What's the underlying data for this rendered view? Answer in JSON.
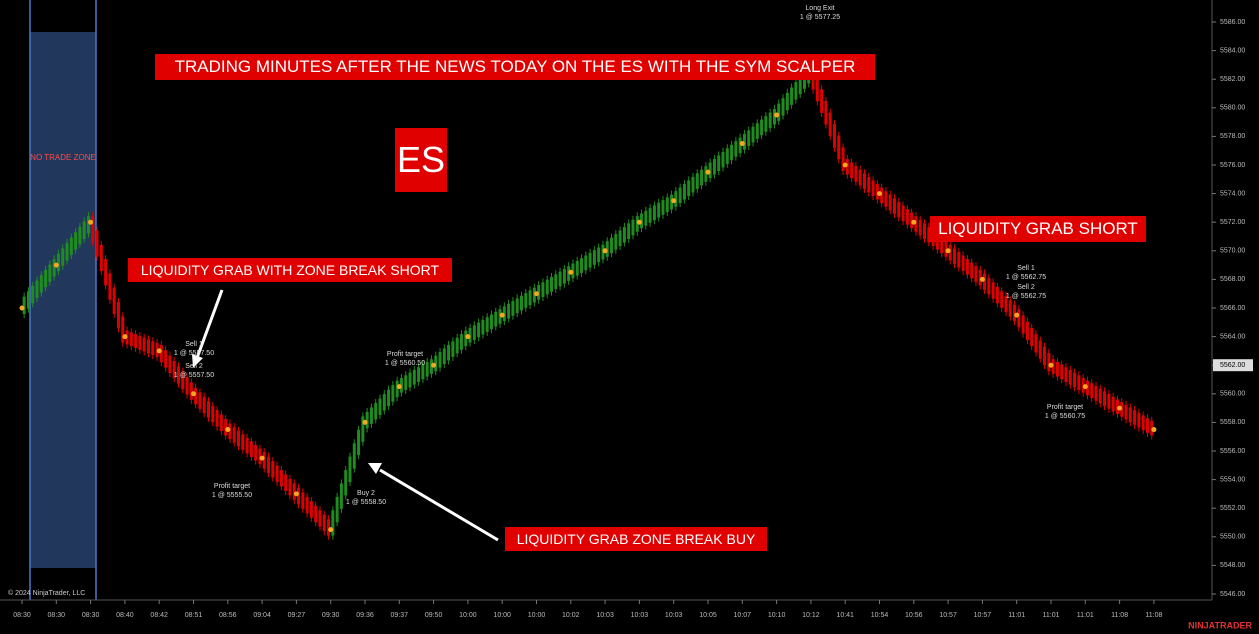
{
  "chart_data": {
    "type": "candlestick",
    "title": "TRADING MINUTES AFTER THE NEWS TODAY ON THE ES WITH THE SYM SCALPER",
    "symbol": "ES",
    "zone_label": "NO TRADE ZONE",
    "callouts": [
      "LIQUIDITY GRAB WITH ZONE BREAK SHORT",
      "LIQUIDITY GRAB ZONE BREAK BUY",
      "LIQUIDITY GRAB SHORT"
    ],
    "copyright": "© 2024 NinjaTrader, LLC",
    "brand": "NINJATRADER",
    "categories": [
      "08:30",
      "08:30",
      "08:30",
      "08:40",
      "08:42",
      "08:51",
      "08:56",
      "09:04",
      "09:27",
      "09:30",
      "09:36",
      "09:37",
      "09:50",
      "10:00",
      "10:00",
      "10:00",
      "10:02",
      "10:03",
      "10:03",
      "10:03",
      "10:05",
      "10:07",
      "10:10",
      "10:12",
      "10:41",
      "10:54",
      "10:56",
      "10:57",
      "10:57",
      "11:01",
      "11:01",
      "11:01",
      "11:08",
      "11:08"
    ],
    "series": [
      {
        "values": [
          5566,
          5569,
          5572,
          5564,
          5563,
          5560,
          5557.5,
          5555.5,
          5553,
          5550.5,
          5558,
          5560.5,
          5562,
          5564,
          5565.5,
          5567,
          5568.5,
          5570,
          5572,
          5573.5,
          5575.5,
          5577.5,
          5579.5,
          5582.5,
          5576,
          5574,
          5572,
          5570,
          5568,
          5565.5,
          5562,
          5560.5,
          5559,
          5557.5
        ]
      }
    ],
    "up_color": "#1f8c1f",
    "down_color": "#e00000",
    "trend_color": "#f5a623",
    "ylim": [
      5545,
      5587
    ],
    "yticks": [
      {
        "value": 5546,
        "label": "5546.00"
      },
      {
        "value": 5548,
        "label": "5548.00"
      },
      {
        "value": 5550,
        "label": "5550.00"
      },
      {
        "value": 5552,
        "label": "5552.00"
      },
      {
        "value": 5554,
        "label": "5554.00"
      },
      {
        "value": 5556,
        "label": "5556.00"
      },
      {
        "value": 5558,
        "label": "5558.00"
      },
      {
        "value": 5560,
        "label": "5560.00"
      },
      {
        "value": 5562,
        "label": "5562.00"
      },
      {
        "value": 5564,
        "label": "5564.00"
      },
      {
        "value": 5566,
        "label": "5566.00"
      },
      {
        "value": 5568,
        "label": "5568.00"
      },
      {
        "value": 5570,
        "label": "5570.00"
      },
      {
        "value": 5572,
        "label": "5572.00"
      },
      {
        "value": 5574,
        "label": "5574.00"
      },
      {
        "value": 5576,
        "label": "5576.00"
      },
      {
        "value": 5578,
        "label": "5578.00"
      },
      {
        "value": 5580,
        "label": "5580.00"
      },
      {
        "value": 5582,
        "label": "5582.00"
      },
      {
        "value": 5584,
        "label": "5584.00"
      },
      {
        "value": 5586,
        "label": "5586.00"
      }
    ],
    "last_price": {
      "value": 5562,
      "label": "5562.00"
    },
    "orders": [
      {
        "text": "Long Exit",
        "detail": "1 @ 5577.25"
      },
      {
        "text": "Sell 1",
        "detail": "1 @ 5557.50"
      },
      {
        "text": "Sell 2",
        "detail": "1 @ 5557.50"
      },
      {
        "text": "Profit target",
        "detail": "1 @ 5555.50"
      },
      {
        "text": "Profit target",
        "detail": "1 @ 5560.50"
      },
      {
        "text": "Buy 2",
        "detail": "1 @ 5558.50"
      },
      {
        "text": "Sell 1",
        "detail": "1 @ 5562.75"
      },
      {
        "text": "Sell 2",
        "detail": "1 @ 5562.75"
      },
      {
        "text": "Profit target",
        "detail": "1 @ 5560.75"
      }
    ]
  }
}
